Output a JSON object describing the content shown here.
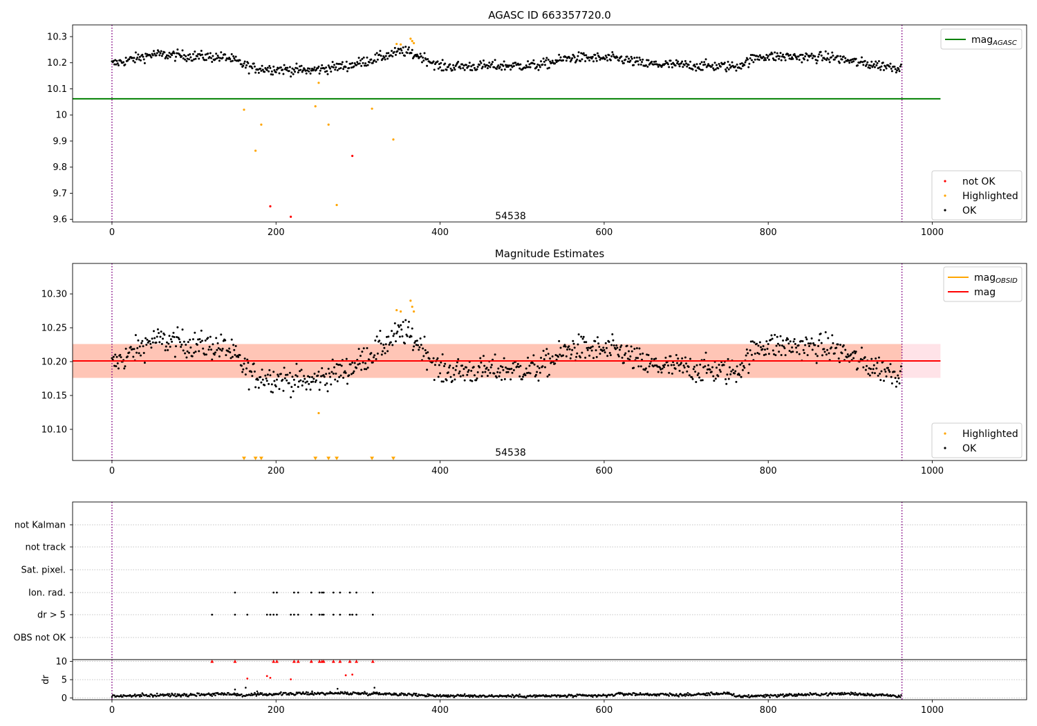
{
  "colors": {
    "ok": "#000000",
    "highlighted": "#ffa500",
    "not_ok": "#ff0000",
    "mag_agasc": "#008000",
    "mag_obsid": "#ffa500",
    "mag": "#ff0000",
    "band": "#ffc0cb",
    "band_obsid": "#ffa07a",
    "obs_boundary": "#800080",
    "grid": "#b0b0b0"
  },
  "chart_data": [
    {
      "type": "scatter",
      "title": "AGASC ID 663357720.0",
      "xlim": [
        -48,
        1115
      ],
      "ylim": [
        9.59,
        10.345
      ],
      "xticks": [
        0,
        200,
        400,
        600,
        800,
        1000
      ],
      "yticks": [
        9.6,
        9.7,
        9.8,
        9.9,
        10.0,
        10.1,
        10.2,
        10.3
      ],
      "annotation": {
        "text": "54538",
        "x": 480,
        "y": 9.6
      },
      "obs_boundaries": [
        0,
        963
      ],
      "reference_lines": [
        {
          "name": "mag_AGASC",
          "y": 10.062,
          "x": [
            -48,
            1010
          ]
        }
      ],
      "ok_series": {
        "name": "OK",
        "n": 963,
        "segments": [
          [
            0,
            10.195
          ],
          [
            50,
            10.232
          ],
          [
            140,
            10.22
          ],
          [
            170,
            10.18
          ],
          [
            240,
            10.17
          ],
          [
            290,
            10.19
          ],
          [
            320,
            10.215
          ],
          [
            355,
            10.245
          ],
          [
            380,
            10.22
          ],
          [
            400,
            10.185
          ],
          [
            520,
            10.19
          ],
          [
            560,
            10.22
          ],
          [
            620,
            10.215
          ],
          [
            650,
            10.195
          ],
          [
            760,
            10.185
          ],
          [
            790,
            10.225
          ],
          [
            880,
            10.22
          ],
          [
            910,
            10.2
          ],
          [
            963,
            10.18
          ]
        ],
        "noise": 0.018
      },
      "series": [
        {
          "name": "not OK",
          "x": [
            193,
            218,
            293
          ],
          "y": [
            9.65,
            9.61,
            9.843
          ]
        },
        {
          "name": "Highlighted",
          "x": [
            161,
            175,
            182,
            248,
            252,
            264,
            274,
            317,
            343,
            347,
            352,
            364,
            366,
            368
          ],
          "y": [
            10.02,
            9.863,
            9.963,
            10.033,
            10.123,
            9.963,
            9.655,
            10.024,
            9.906,
            10.272,
            10.27,
            10.292,
            10.283,
            10.275
          ]
        }
      ],
      "legends": [
        {
          "position": "upper right",
          "entries": [
            {
              "label": "mag",
              "sub": "AGASC",
              "kind": "line",
              "color": "#008000"
            }
          ]
        },
        {
          "position": "lower right",
          "entries": [
            {
              "label": "not OK",
              "kind": "dot",
              "color": "#ff0000"
            },
            {
              "label": "Highlighted",
              "kind": "dot",
              "color": "#ffa500"
            },
            {
              "label": "OK",
              "kind": "dot",
              "color": "#000000"
            }
          ]
        }
      ]
    },
    {
      "type": "scatter",
      "title": "Magnitude Estimates",
      "xlim": [
        -48,
        1115
      ],
      "ylim": [
        10.054,
        10.345
      ],
      "xticks": [
        0,
        200,
        400,
        600,
        800,
        1000
      ],
      "yticks": [
        10.1,
        10.15,
        10.2,
        10.25,
        10.3
      ],
      "ytick_labels": [
        "10.10",
        "10.15",
        "10.20",
        "10.25",
        "10.30"
      ],
      "annotation": {
        "text": "54538",
        "x": 480,
        "y": 10.061
      },
      "obs_boundaries": [
        0,
        963
      ],
      "reference_lines": [
        {
          "name": "mag",
          "y": 10.201,
          "x": [
            -48,
            1010
          ]
        }
      ],
      "bands": [
        {
          "name": "mag",
          "y": [
            10.176,
            10.226
          ],
          "x": [
            -48,
            1010
          ],
          "color": "#ffc0cb"
        },
        {
          "name": "mag_OBSID",
          "y": [
            10.176,
            10.226
          ],
          "x": [
            -48,
            963
          ],
          "color": "#ffa07a"
        }
      ],
      "ok_series": {
        "name": "OK",
        "n": 963,
        "segments": [
          [
            0,
            10.195
          ],
          [
            50,
            10.232
          ],
          [
            140,
            10.22
          ],
          [
            170,
            10.18
          ],
          [
            240,
            10.17
          ],
          [
            290,
            10.19
          ],
          [
            320,
            10.215
          ],
          [
            355,
            10.245
          ],
          [
            380,
            10.22
          ],
          [
            400,
            10.185
          ],
          [
            520,
            10.19
          ],
          [
            560,
            10.22
          ],
          [
            620,
            10.215
          ],
          [
            650,
            10.195
          ],
          [
            760,
            10.185
          ],
          [
            790,
            10.225
          ],
          [
            880,
            10.22
          ],
          [
            910,
            10.2
          ],
          [
            963,
            10.18
          ]
        ],
        "noise": 0.018
      },
      "series": [
        {
          "name": "Highlighted",
          "x": [
            252,
            347,
            352,
            364,
            366,
            368
          ],
          "y": [
            10.124,
            10.276,
            10.274,
            10.29,
            10.281,
            10.274
          ]
        },
        {
          "name": "Highlighted (below axis)",
          "marker": "triangle-down",
          "x": [
            161,
            175,
            182,
            248,
            264,
            274,
            317,
            343
          ],
          "y": [
            10.057,
            10.057,
            10.057,
            10.057,
            10.057,
            10.057,
            10.057,
            10.057
          ]
        }
      ],
      "legends": [
        {
          "position": "upper right",
          "entries": [
            {
              "label": "mag",
              "sub": "OBSID",
              "kind": "line",
              "color": "#ffa500"
            },
            {
              "label": "mag",
              "kind": "line",
              "color": "#ff0000"
            }
          ]
        },
        {
          "position": "lower right",
          "entries": [
            {
              "label": "Highlighted",
              "kind": "dot",
              "color": "#ffa500"
            },
            {
              "label": "OK",
              "kind": "dot",
              "color": "#000000"
            }
          ]
        }
      ]
    },
    {
      "type": "scatter",
      "title": "",
      "xlim": [
        -48,
        1115
      ],
      "categories": [
        "not Kalman",
        "not track",
        "Sat. pixel.",
        "Ion. rad.",
        "dr > 5",
        "OBS not OK"
      ],
      "obs_boundaries": [
        0,
        963
      ],
      "series": [
        {
          "name": "Ion. rad.",
          "x": [
            150,
            197,
            201,
            222,
            227,
            243,
            253,
            256,
            258,
            270,
            278,
            290,
            298,
            318
          ]
        },
        {
          "name": "dr > 5",
          "x": [
            122,
            150,
            165,
            189,
            193,
            197,
            201,
            218,
            222,
            227,
            243,
            253,
            256,
            258,
            270,
            278,
            290,
            293,
            298,
            318
          ]
        }
      ]
    },
    {
      "type": "scatter",
      "title": "",
      "ylabel": "dr",
      "xlim": [
        -48,
        1115
      ],
      "ylim": [
        -0.5,
        10.5
      ],
      "xticks": [
        0,
        200,
        400,
        600,
        800,
        1000
      ],
      "yticks": [
        0,
        5,
        10
      ],
      "obs_boundaries": [
        0,
        963
      ],
      "ok_series": {
        "name": "dr",
        "n": 963,
        "segments": [
          [
            0,
            0.5
          ],
          [
            120,
            1.0
          ],
          [
            140,
            1.2
          ],
          [
            160,
            0.7
          ],
          [
            200,
            1.1
          ],
          [
            280,
            1.3
          ],
          [
            330,
            1.2
          ],
          [
            400,
            0.6
          ],
          [
            500,
            0.5
          ],
          [
            600,
            0.6
          ],
          [
            620,
            1.1
          ],
          [
            700,
            0.8
          ],
          [
            750,
            1.3
          ],
          [
            760,
            0.4
          ],
          [
            900,
            1.2
          ],
          [
            963,
            0.5
          ]
        ],
        "noise": 0.2
      },
      "extra_points": {
        "x": [
          150,
          163,
          177,
          244,
          275,
          320
        ],
        "y": [
          2.3,
          2.8,
          1.8,
          1.8,
          2.5,
          2.8
        ]
      },
      "series": [
        {
          "name": "dr > 5 (clipped)",
          "marker": "triangle-up",
          "x": [
            122,
            150,
            197,
            201,
            222,
            227,
            243,
            253,
            256,
            258,
            270,
            278,
            290,
            298,
            318
          ],
          "y": [
            10,
            10,
            10,
            10,
            10,
            10,
            10,
            10,
            10,
            10,
            10,
            10,
            10,
            10,
            10
          ]
        },
        {
          "name": "dr > 5",
          "x": [
            165,
            189,
            193,
            218,
            285,
            293
          ],
          "y": [
            5.3,
            6.0,
            5.5,
            5.1,
            6.2,
            6.4
          ]
        }
      ]
    }
  ]
}
